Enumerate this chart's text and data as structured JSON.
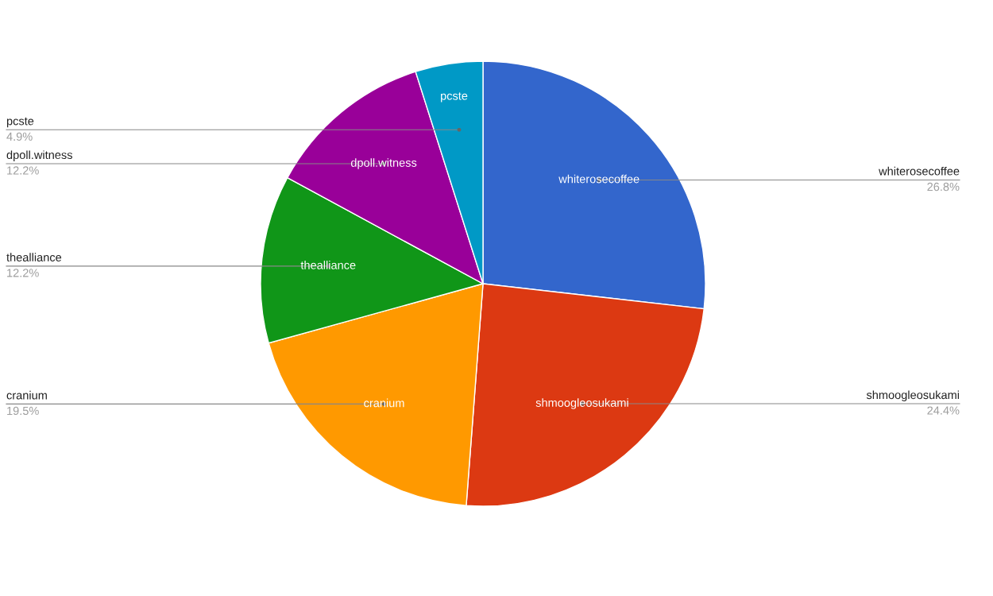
{
  "chart_data": {
    "type": "pie",
    "categories": [
      "whiterosecoffee",
      "shmoogleosukami",
      "cranium",
      "thealliance",
      "dpoll.witness",
      "pcste"
    ],
    "values": [
      26.8,
      24.4,
      19.5,
      12.2,
      12.2,
      4.9
    ],
    "colors": [
      "#3366cc",
      "#dc3912",
      "#ff9900",
      "#109618",
      "#990099",
      "#0099c6"
    ],
    "value_labels": [
      "26.8%",
      "24.4%",
      "19.5%",
      "12.2%",
      "12.2%",
      "4.9%"
    ],
    "legend": false
  }
}
